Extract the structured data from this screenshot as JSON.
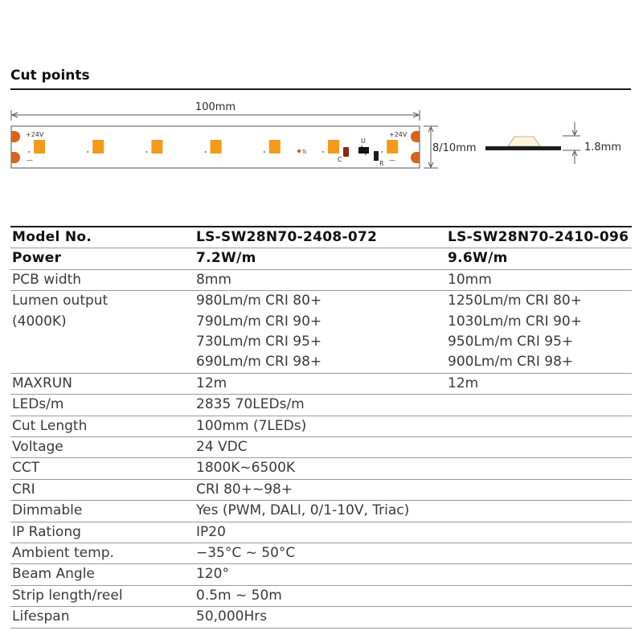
{
  "section": {
    "title": "Cut points"
  },
  "diagram": {
    "length_label": "100mm",
    "width_label": "8/10mm",
    "height_label": "1.8mm",
    "voltage_left": "+24V",
    "voltage_right": "+24V",
    "minus_left": "—",
    "minus_right": "—",
    "comp_c": "C",
    "comp_u": "U",
    "comp_r": "R",
    "tc_label": "Tc",
    "led_count": 7,
    "colors": {
      "led": "#f39a1c",
      "pad": "#d9631a",
      "outline": "#6e6e6e"
    }
  },
  "table": {
    "header": {
      "label": "Model No.",
      "col1": "LS-SW28N70-2408-072",
      "col2": "LS-SW28N70-2410-096"
    },
    "power": {
      "label": "Power",
      "col1": "7.2W/m",
      "col2": "9.6W/m"
    },
    "pcb": {
      "label": "PCB width",
      "col1": "8mm",
      "col2": "10mm"
    },
    "lumen": {
      "label1": "Lumen  output",
      "label2": "(4000K)",
      "col1": [
        "980Lm/m CRI 80+",
        "790Lm/m CRI 90+",
        "730Lm/m CRI 95+",
        "690Lm/m CRI 98+"
      ],
      "col2": [
        "1250Lm/m CRI 80+",
        "1030Lm/m CRI 90+",
        "950Lm/m CRI 95+",
        "900Lm/m CRI 98+"
      ]
    },
    "maxrun": {
      "label": "MAXRUN",
      "col1": "12m",
      "col2": "12m"
    },
    "rows": [
      {
        "label": "LEDs/m",
        "value": "2835  70LEDs/m"
      },
      {
        "label": "Cut Length",
        "value": "100mm (7LEDs)"
      },
      {
        "label": "Voltage",
        "value": "24 VDC"
      },
      {
        "label": "CCT",
        "value": "1800K~6500K"
      },
      {
        "label": "CRI",
        "value": "CRI 80+~98+"
      },
      {
        "label": "Dimmable",
        "value": "Yes (PWM, DALI, 0/1-10V, Triac)"
      },
      {
        "label": "IP Rationg",
        "value": "IP20"
      },
      {
        "label": "Ambient temp.",
        "value": "−35°C ~ 50°C"
      },
      {
        "label": "Beam Angle",
        "value": "120°"
      },
      {
        "label": "Strip length/reel",
        "value": "0.5m ~ 50m"
      },
      {
        "label": "Lifespan",
        "value": "50,000Hrs"
      }
    ]
  }
}
